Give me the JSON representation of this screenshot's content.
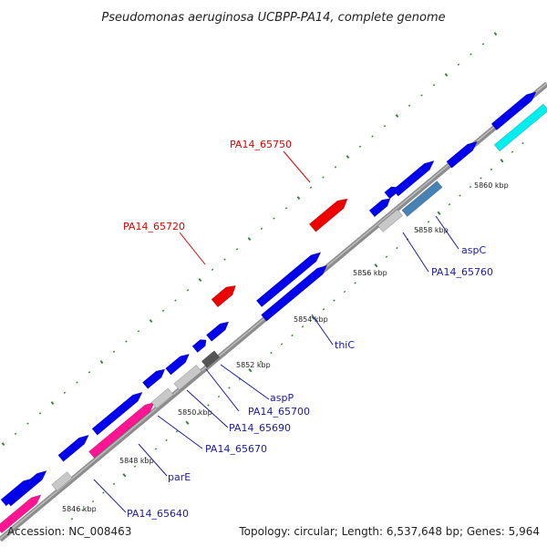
{
  "title": "Pseudomonas aeruginosa UCBPP-PA14, complete genome",
  "footer": {
    "accession": "Accession: NC_008463",
    "topology": "Topology: circular; Length: 6,537,648 bp; Genes: 5,964"
  },
  "colors": {
    "backbone": "#8c8c8c",
    "outer_dots": "#2e8b2e",
    "strand_blue": "#0000ee",
    "highlight_red": "#ee0000",
    "magenta": "#ff1493",
    "cyan": "#00eeee",
    "grey_gene": "#c8c8c8",
    "dark_grey_gene": "#555555",
    "steel_gene": "#4682b4"
  },
  "ticks": [
    {
      "label": "5846 kbp"
    },
    {
      "label": "5848 kbp"
    },
    {
      "label": "5850 kbp"
    },
    {
      "label": "5852 kbp"
    },
    {
      "label": "5854 kbp"
    },
    {
      "label": "5856 kbp"
    },
    {
      "label": "5858 kbp"
    },
    {
      "label": "5860 kbp"
    }
  ],
  "gene_labels": [
    {
      "text": "PA14_65750",
      "color": "red"
    },
    {
      "text": "PA14_65720",
      "color": "red"
    },
    {
      "text": "aspC",
      "color": "blue"
    },
    {
      "text": "PA14_65760",
      "color": "blue"
    },
    {
      "text": "thiC",
      "color": "blue"
    },
    {
      "text": "aspP",
      "color": "blue"
    },
    {
      "text": "PA14_65700",
      "color": "blue"
    },
    {
      "text": "PA14_65690",
      "color": "blue"
    },
    {
      "text": "PA14_65670",
      "color": "blue"
    },
    {
      "text": "parE",
      "color": "blue"
    },
    {
      "text": "PA14_65640",
      "color": "blue"
    }
  ]
}
